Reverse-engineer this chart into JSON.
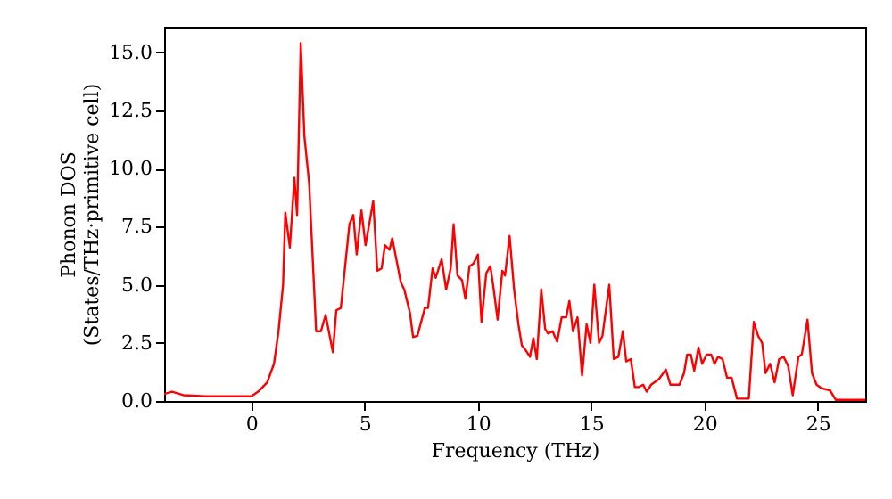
{
  "chart_data": {
    "type": "line",
    "xlabel": "Frequency (THz)",
    "ylabel": "Phonon DOS\n(States/THz·primitive cell)",
    "xlim": [
      -3.85,
      27.1
    ],
    "ylim": [
      0,
      16.1
    ],
    "xticks": [
      0,
      5,
      10,
      15,
      20,
      25
    ],
    "yticks": [
      {
        "value": 0,
        "label": "0.0"
      },
      {
        "value": 2.5,
        "label": "2.5"
      },
      {
        "value": 5,
        "label": "5.0"
      },
      {
        "value": 7.5,
        "label": "7.5"
      },
      {
        "value": 10,
        "label": "10.0"
      },
      {
        "value": 12.5,
        "label": "12.5"
      },
      {
        "value": 15,
        "label": "15.0"
      }
    ],
    "grid": false,
    "marker": "none",
    "line_style": "solid",
    "series": [
      {
        "color": "#ff0000",
        "x": [
          -3.85,
          -3.5,
          -3,
          -2,
          -1,
          -0.5,
          0,
          0.3,
          0.7,
          1,
          1.2,
          1.4,
          1.5,
          1.7,
          1.9,
          2.02,
          2.18,
          2.34,
          2.55,
          2.86,
          3.07,
          3.28,
          3.6,
          3.75,
          3.95,
          4.33,
          4.5,
          4.65,
          4.86,
          5.04,
          5.38,
          5.56,
          5.75,
          5.9,
          6.1,
          6.22,
          6.6,
          6.75,
          7.0,
          7.14,
          7.33,
          7.66,
          7.8,
          8.0,
          8.14,
          8.27,
          8.4,
          8.6,
          8.8,
          8.93,
          9.1,
          9.3,
          9.45,
          9.63,
          9.8,
          10.0,
          10.16,
          10.37,
          10.55,
          10.7,
          10.87,
          11.08,
          11.2,
          11.4,
          11.6,
          11.79,
          11.94,
          12.1,
          12.3,
          12.45,
          12.6,
          12.8,
          12.97,
          13.1,
          13.3,
          13.5,
          13.7,
          13.9,
          14.04,
          14.2,
          14.4,
          14.6,
          14.8,
          14.97,
          15.14,
          15.35,
          15.5,
          15.8,
          16.0,
          16.2,
          16.4,
          16.55,
          16.75,
          16.93,
          17.1,
          17.3,
          17.45,
          17.65,
          18.0,
          18.3,
          18.5,
          18.9,
          19.1,
          19.24,
          19.4,
          19.55,
          19.74,
          19.9,
          20.1,
          20.3,
          20.45,
          20.6,
          20.8,
          21.0,
          21.2,
          21.44,
          21.96,
          22.18,
          22.37,
          22.55,
          22.7,
          22.9,
          23.1,
          23.3,
          23.5,
          23.7,
          23.9,
          24.15,
          24.3,
          24.55,
          24.75,
          24.95,
          25.17,
          25.55,
          25.8,
          27.1
        ],
        "values": [
          0.3,
          0.4,
          0.25,
          0.2,
          0.2,
          0.2,
          0.2,
          0.4,
          0.8,
          1.6,
          3,
          5,
          8.1,
          6.6,
          9.6,
          8.0,
          15.4,
          11.4,
          9.4,
          3.0,
          3.0,
          3.7,
          2.1,
          3.9,
          4.0,
          7.6,
          8.0,
          6.3,
          8.2,
          6.7,
          8.6,
          5.6,
          5.7,
          6.7,
          6.5,
          7.0,
          5.1,
          4.8,
          3.8,
          2.75,
          2.8,
          4.0,
          4.0,
          5.7,
          5.3,
          5.7,
          6.1,
          4.8,
          5.7,
          7.6,
          5.4,
          5.2,
          4.4,
          5.8,
          5.9,
          6.3,
          3.4,
          5.5,
          5.8,
          4.8,
          3.5,
          5.6,
          5.4,
          7.1,
          4.8,
          3.3,
          2.4,
          2.2,
          1.9,
          2.7,
          1.8,
          4.8,
          3.1,
          2.9,
          3.0,
          2.55,
          3.6,
          3.6,
          4.3,
          3.0,
          3.6,
          1.1,
          3.3,
          2.5,
          5.0,
          2.5,
          2.8,
          5.0,
          1.8,
          1.9,
          3.0,
          1.7,
          1.8,
          0.6,
          0.6,
          0.7,
          0.4,
          0.7,
          0.95,
          1.35,
          0.7,
          0.7,
          1.2,
          2.0,
          2.0,
          1.3,
          2.3,
          1.6,
          2.0,
          2.0,
          1.6,
          1.9,
          1.8,
          1.0,
          1.0,
          0.1,
          0.1,
          3.4,
          2.8,
          2.5,
          1.2,
          1.6,
          0.8,
          1.8,
          1.9,
          1.5,
          0.25,
          1.9,
          2.0,
          3.5,
          1.2,
          0.7,
          0.55,
          0.45,
          0.05,
          0.05
        ]
      }
    ]
  }
}
